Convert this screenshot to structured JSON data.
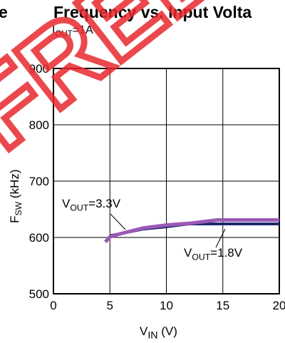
{
  "header": {
    "left_fragment": "e",
    "title": "Frequency vs. Input Volta"
  },
  "condition": {
    "main": "I",
    "sub": "OUT",
    "rest": "=1A"
  },
  "watermark": "FREE",
  "annotations": {
    "vout33": {
      "main": "V",
      "sub": "OUT",
      "rest": "=3.3V"
    },
    "vout18": {
      "main": "V",
      "sub": "OUT",
      "rest": "=1.8V"
    }
  },
  "axes": {
    "x_main": "V",
    "x_sub": "IN",
    "x_rest": " (V)",
    "y_main": "F",
    "y_sub": "SW",
    "y_rest": " (kHz)"
  },
  "colors": {
    "vout33": "#9b59b6",
    "vout18": "#1f2a6b",
    "watermark": "#e8292e"
  },
  "chart_data": {
    "type": "line",
    "title": "Frequency vs. Input Volta",
    "xlabel": "VIN (V)",
    "ylabel": "FSW (kHz)",
    "xlim": [
      0,
      20
    ],
    "ylim": [
      500,
      900
    ],
    "xticks": [
      0,
      5,
      10,
      15,
      20
    ],
    "yticks": [
      500,
      600,
      700,
      800,
      900
    ],
    "grid": true,
    "series": [
      {
        "name": "VOUT=3.3V",
        "x": [
          4.6,
          5,
          6,
          8,
          10,
          12,
          14.5,
          17,
          20
        ],
        "y": [
          592,
          601,
          607,
          617,
          622,
          625,
          631,
          631,
          631
        ]
      },
      {
        "name": "VOUT=1.8V",
        "x": [
          5,
          6,
          8,
          10,
          12,
          14.5,
          17,
          20
        ],
        "y": [
          603,
          607,
          615,
          619,
          624,
          624,
          624,
          624
        ]
      }
    ]
  }
}
